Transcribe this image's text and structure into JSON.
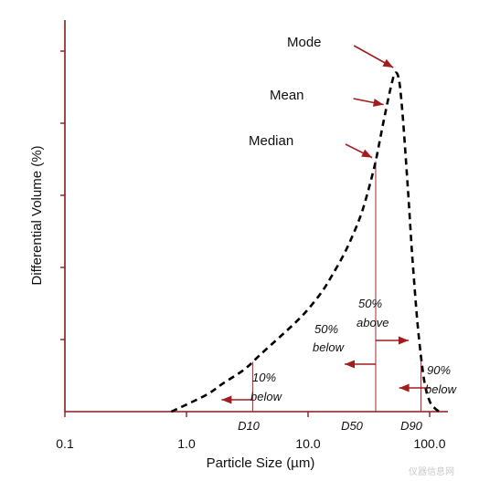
{
  "chart_data": {
    "type": "line",
    "title": "",
    "xlabel": "Particle Size (µm)",
    "ylabel": "Differential Volume (%)",
    "x_scale": "log",
    "xlim": [
      0.1,
      200
    ],
    "ylim": [
      0,
      100
    ],
    "x_ticks": [
      0.1,
      1.0,
      10.0,
      100.0
    ],
    "x_tick_labels": [
      "0.1",
      "1.0",
      "10.0",
      "100.0"
    ],
    "y_tick_labels_shown": false,
    "grid": false,
    "series": [
      {
        "x": [
          0.75,
          1.0,
          1.5,
          2.0,
          3.0,
          4.0,
          6.0,
          8.0,
          10.0,
          13.0,
          16.0,
          20.0,
          24.0,
          28.0,
          32.0,
          36.0,
          40.0,
          44.0,
          48.0,
          52.0,
          56.0,
          60.0,
          66.0,
          72.0,
          80.0,
          90.0,
          100.0,
          110.0,
          120.0
        ],
        "y": [
          0,
          2,
          5,
          8,
          12,
          16,
          21.5,
          25.5,
          29,
          34,
          39,
          45,
          51,
          57,
          64,
          71,
          79,
          86,
          92,
          96,
          94,
          84,
          64,
          44,
          24,
          9,
          3,
          1,
          0
        ]
      }
    ],
    "annotations": {
      "mode": {
        "label": "Mode",
        "x": 52.0
      },
      "mean": {
        "label": "Mean",
        "x": 44.0
      },
      "median": {
        "label": "Median",
        "x": 36.0
      },
      "d10": {
        "label": "D10",
        "x": 3.5,
        "text": "10% below"
      },
      "d50": {
        "label": "D50",
        "x": 36.0,
        "text_below": "50% below",
        "text_above": "50% above"
      },
      "d90": {
        "label": "D90",
        "x": 85.0,
        "text": "90% below"
      }
    }
  },
  "labels": {
    "mode": "Mode",
    "mean": "Mean",
    "median": "Median",
    "d10": "D10",
    "d50": "D50",
    "d90": "D90",
    "pct10_a": "10%",
    "pct10_b": "below",
    "pct50b_a": "50%",
    "pct50b_b": "below",
    "pct50a_a": "50%",
    "pct50a_b": "above",
    "pct90_a": "90%",
    "pct90_b": "below"
  },
  "watermark": "仪器信息网"
}
